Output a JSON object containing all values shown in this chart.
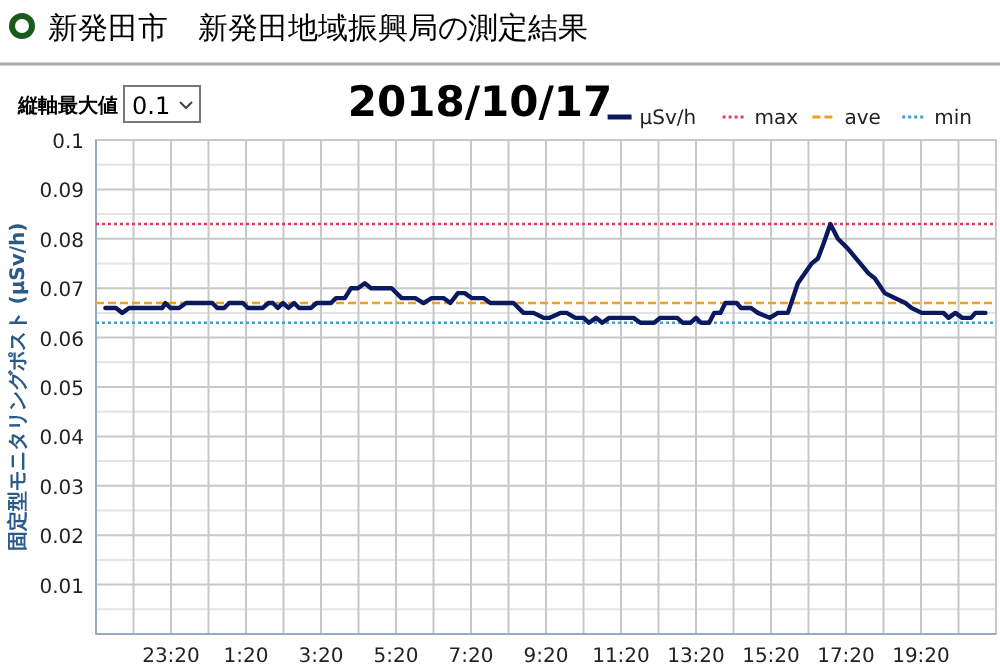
{
  "chart_data": {
    "type": "line",
    "title": "2018/10/17",
    "subtitle": "新発田市　新発田地域振興局の測定結果",
    "ylabel": "固定型モニタリングポスト (μSv/h)",
    "annotations": [
      "縦軸最大値",
      "0.1"
    ],
    "xlim": [
      "2018-10-16T21:20",
      "2018-10-17T21:20"
    ],
    "ylim": [
      0,
      0.1
    ],
    "xticks": [
      {
        "value": "2018-10-16T22:20",
        "label": null
      },
      {
        "value": "2018-10-16T23:20",
        "label": "23:20"
      },
      {
        "value": "2018-10-17T00:20",
        "label": null
      },
      {
        "value": "2018-10-17T01:20",
        "label": "1:20"
      },
      {
        "value": "2018-10-17T02:20",
        "label": null
      },
      {
        "value": "2018-10-17T03:20",
        "label": "3:20"
      },
      {
        "value": "2018-10-17T04:20",
        "label": null
      },
      {
        "value": "2018-10-17T05:20",
        "label": "5:20"
      },
      {
        "value": "2018-10-17T06:20",
        "label": null
      },
      {
        "value": "2018-10-17T07:20",
        "label": "7:20"
      },
      {
        "value": "2018-10-17T08:20",
        "label": null
      },
      {
        "value": "2018-10-17T09:20",
        "label": "9:20"
      },
      {
        "value": "2018-10-17T10:20",
        "label": null
      },
      {
        "value": "2018-10-17T11:20",
        "label": "11:20"
      },
      {
        "value": "2018-10-17T12:20",
        "label": null
      },
      {
        "value": "2018-10-17T13:20",
        "label": "13:20"
      },
      {
        "value": "2018-10-17T14:20",
        "label": null
      },
      {
        "value": "2018-10-17T15:20",
        "label": "15:20"
      },
      {
        "value": "2018-10-17T16:20",
        "label": null
      },
      {
        "value": "2018-10-17T17:20",
        "label": "17:20"
      },
      {
        "value": "2018-10-17T18:20",
        "label": null
      },
      {
        "value": "2018-10-17T19:20",
        "label": "19:20"
      },
      {
        "value": "2018-10-17T20:20",
        "label": null
      }
    ],
    "yticks": [
      {
        "value": 0,
        "label": null
      },
      {
        "value": 0.005,
        "label": null
      },
      0.01,
      {
        "value": 0.015,
        "label": null
      },
      0.02,
      {
        "value": 0.025,
        "label": null
      },
      0.03,
      {
        "value": 0.035,
        "label": null
      },
      0.04,
      {
        "value": 0.045,
        "label": null
      },
      0.05,
      {
        "value": 0.055,
        "label": null
      },
      0.06,
      {
        "value": 0.065,
        "label": null
      },
      0.07,
      {
        "value": 0.075,
        "label": null
      },
      0.08,
      {
        "value": 0.085,
        "label": null
      },
      0.09,
      {
        "value": 0.095,
        "label": null
      },
      0.1
    ],
    "grid": true,
    "legend": "top right",
    "line_style": "solid",
    "x": [
      "2018-10-16T21:35",
      "2018-10-16T21:52",
      "2018-10-16T22:02",
      "2018-10-16T22:13",
      "2018-10-16T23:06",
      "2018-10-16T23:11",
      "2018-10-16T23:19",
      "2018-10-16T23:33",
      "2018-10-16T23:44",
      "2018-10-17T00:26",
      "2018-10-17T00:34",
      "2018-10-17T00:45",
      "2018-10-17T00:53",
      "2018-10-17T01:15",
      "2018-10-17T01:23",
      "2018-10-17T01:47",
      "2018-10-17T01:56",
      "2018-10-17T02:03",
      "2018-10-17T02:11",
      "2018-10-17T02:19",
      "2018-10-17T02:28",
      "2018-10-17T02:37",
      "2018-10-17T02:45",
      "2018-10-17T03:04",
      "2018-10-17T03:13",
      "2018-10-17T03:36",
      "2018-10-17T03:44",
      "2018-10-17T03:58",
      "2018-10-17T04:08",
      "2018-10-17T04:19",
      "2018-10-17T04:30",
      "2018-10-17T04:40",
      "2018-10-17T05:13",
      "2018-10-17T05:29",
      "2018-10-17T05:51",
      "2018-10-17T06:04",
      "2018-10-17T06:17",
      "2018-10-17T06:36",
      "2018-10-17T06:47",
      "2018-10-17T06:59",
      "2018-10-17T07:10",
      "2018-10-17T07:21",
      "2018-10-17T07:40",
      "2018-10-17T07:51",
      "2018-10-17T08:28",
      "2018-10-17T08:44",
      "2018-10-17T09:00",
      "2018-10-17T09:16",
      "2018-10-17T09:26",
      "2018-10-17T09:43",
      "2018-10-17T09:53",
      "2018-10-17T10:07",
      "2018-10-17T10:20",
      "2018-10-17T10:29",
      "2018-10-17T10:40",
      "2018-10-17T10:50",
      "2018-10-17T11:01",
      "2018-10-17T11:40",
      "2018-10-17T11:51",
      "2018-10-17T12:13",
      "2018-10-17T12:23",
      "2018-10-17T12:50",
      "2018-10-17T12:59",
      "2018-10-17T13:11",
      "2018-10-17T13:20",
      "2018-10-17T13:28",
      "2018-10-17T13:41",
      "2018-10-17T13:49",
      "2018-10-17T13:59",
      "2018-10-17T14:07",
      "2018-10-17T14:25",
      "2018-10-17T14:32",
      "2018-10-17T14:48",
      "2018-10-17T14:59",
      "2018-10-17T15:18",
      "2018-10-17T15:31",
      "2018-10-17T15:47",
      "2018-10-17T16:03",
      "2018-10-17T16:25",
      "2018-10-17T16:35",
      "2018-10-17T16:44",
      "2018-10-17T16:55",
      "2018-10-17T17:07",
      "2018-10-17T17:23",
      "2018-10-17T17:56",
      "2018-10-17T18:06",
      "2018-10-17T18:22",
      "2018-10-17T18:38",
      "2018-10-17T18:55",
      "2018-10-17T19:05",
      "2018-10-17T19:21",
      "2018-10-17T19:56",
      "2018-10-17T20:04",
      "2018-10-17T20:15",
      "2018-10-17T20:26",
      "2018-10-17T20:40",
      "2018-10-17T20:47",
      "2018-10-17T21:03"
    ],
    "series": [
      {
        "name": "μSv/h",
        "color": "#0b1a5e",
        "values": [
          0.066,
          0.066,
          0.065,
          0.066,
          0.066,
          0.067,
          0.066,
          0.066,
          0.067,
          0.067,
          0.066,
          0.066,
          0.067,
          0.067,
          0.066,
          0.066,
          0.067,
          0.067,
          0.066,
          0.067,
          0.066,
          0.067,
          0.066,
          0.066,
          0.067,
          0.067,
          0.068,
          0.068,
          0.07,
          0.07,
          0.071,
          0.07,
          0.07,
          0.068,
          0.068,
          0.067,
          0.068,
          0.068,
          0.067,
          0.069,
          0.069,
          0.068,
          0.068,
          0.067,
          0.067,
          0.065,
          0.065,
          0.064,
          0.064,
          0.065,
          0.065,
          0.064,
          0.064,
          0.063,
          0.064,
          0.063,
          0.064,
          0.064,
          0.063,
          0.063,
          0.064,
          0.064,
          0.063,
          0.063,
          0.064,
          0.063,
          0.063,
          0.065,
          0.065,
          0.067,
          0.067,
          0.066,
          0.066,
          0.065,
          0.064,
          0.065,
          0.065,
          0.071,
          0.075,
          0.076,
          0.079,
          0.083,
          0.08,
          0.078,
          0.073,
          0.072,
          0.069,
          0.068,
          0.067,
          0.066,
          0.065,
          0.065,
          0.064,
          0.065,
          0.064,
          0.064,
          0.065,
          0.065
        ]
      }
    ],
    "ref_lines": [
      {
        "axis": "y",
        "value": 0.083,
        "label": "max",
        "color": "#e0405a",
        "line_style": "dotted"
      },
      {
        "axis": "y",
        "value": 0.067,
        "label": "ave",
        "color": "#f0a020",
        "line_style": "dashed"
      },
      {
        "axis": "y",
        "value": 0.063,
        "label": "min",
        "color": "#40a0d0",
        "line_style": "dotted"
      }
    ]
  }
}
